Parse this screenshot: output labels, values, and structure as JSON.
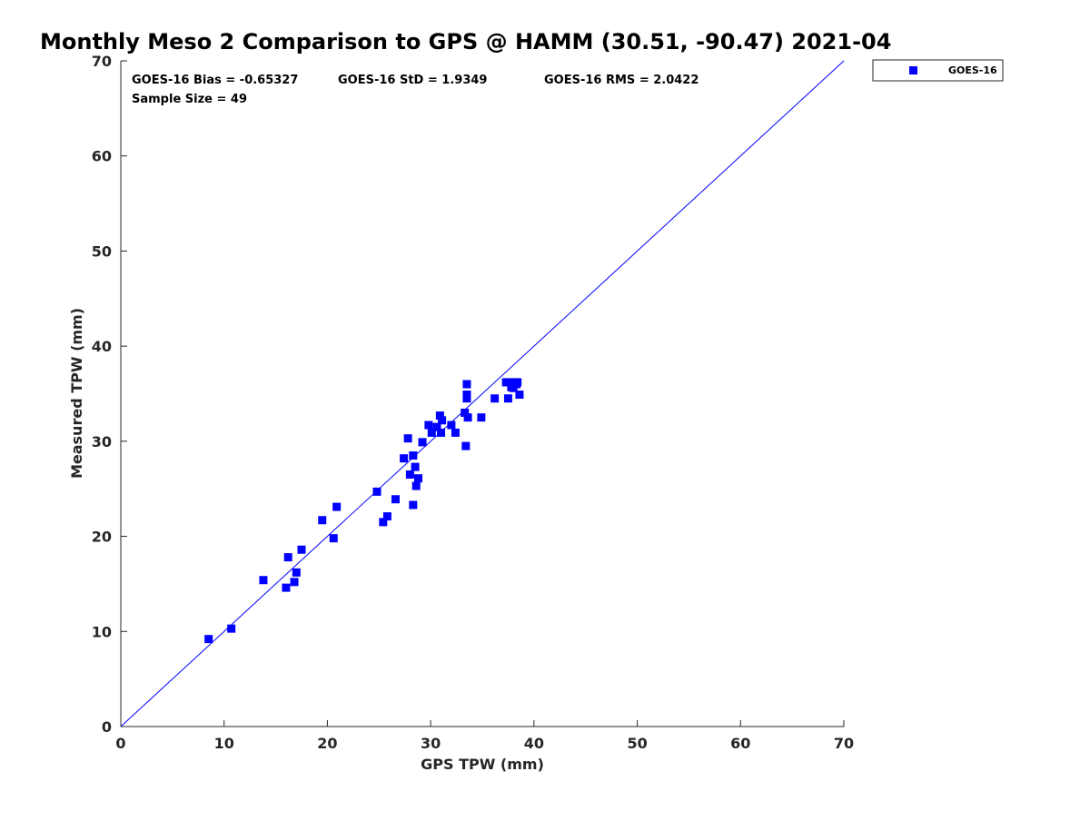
{
  "chart_data": {
    "type": "scatter",
    "title": "Monthly Meso 2 Comparison to GPS @ HAMM (30.51, -90.47) 2021-04",
    "xlabel": "GPS TPW (mm)",
    "ylabel": "Measured TPW (mm)",
    "xlim": [
      0,
      70
    ],
    "ylim": [
      0,
      70
    ],
    "xticks": [
      0,
      10,
      20,
      30,
      40,
      50,
      60,
      70
    ],
    "yticks": [
      0,
      10,
      20,
      30,
      40,
      50,
      60,
      70
    ],
    "xtick_labels": [
      "0",
      "10",
      "20",
      "30",
      "40",
      "50",
      "60",
      "70"
    ],
    "ytick_labels": [
      "0",
      "10",
      "20",
      "30",
      "40",
      "50",
      "60",
      "70"
    ],
    "grid": false,
    "legend_position": "outside-top-right",
    "reference_line": {
      "x": [
        0,
        70
      ],
      "y": [
        0,
        70
      ],
      "color": "#0000ff"
    },
    "stats": {
      "bias": "GOES-16 Bias = -0.65327",
      "std": "GOES-16 StD = 1.9349",
      "rms": "GOES-16 RMS = 2.0422",
      "sample_size": "Sample Size = 49"
    },
    "series": [
      {
        "name": "GOES-16",
        "color": "#0000ff",
        "marker": "square",
        "points": [
          [
            8.5,
            9.2
          ],
          [
            10.7,
            10.3
          ],
          [
            13.8,
            15.4
          ],
          [
            16.0,
            14.6
          ],
          [
            16.2,
            17.8
          ],
          [
            16.8,
            15.2
          ],
          [
            17.0,
            16.2
          ],
          [
            17.5,
            18.6
          ],
          [
            19.5,
            21.7
          ],
          [
            20.6,
            19.8
          ],
          [
            20.9,
            23.1
          ],
          [
            24.8,
            24.7
          ],
          [
            25.4,
            21.5
          ],
          [
            25.8,
            22.1
          ],
          [
            26.6,
            23.9
          ],
          [
            27.4,
            28.2
          ],
          [
            27.8,
            30.3
          ],
          [
            28.0,
            26.5
          ],
          [
            28.3,
            28.5
          ],
          [
            28.3,
            23.3
          ],
          [
            28.5,
            27.3
          ],
          [
            28.6,
            25.3
          ],
          [
            28.8,
            26.1
          ],
          [
            29.2,
            29.9
          ],
          [
            29.8,
            31.7
          ],
          [
            30.1,
            30.9
          ],
          [
            30.6,
            31.5
          ],
          [
            30.9,
            32.7
          ],
          [
            31.0,
            30.9
          ],
          [
            31.1,
            32.2
          ],
          [
            32.0,
            31.7
          ],
          [
            32.4,
            30.9
          ],
          [
            33.3,
            33.0
          ],
          [
            33.4,
            29.5
          ],
          [
            33.5,
            36.0
          ],
          [
            33.5,
            34.9
          ],
          [
            33.5,
            34.5
          ],
          [
            33.6,
            32.5
          ],
          [
            34.9,
            32.5
          ],
          [
            36.2,
            34.5
          ],
          [
            37.3,
            36.2
          ],
          [
            37.5,
            34.5
          ],
          [
            37.7,
            36.2
          ],
          [
            37.8,
            35.7
          ],
          [
            38.0,
            35.6
          ],
          [
            38.1,
            36.2
          ],
          [
            38.3,
            36.0
          ],
          [
            38.4,
            36.2
          ],
          [
            38.6,
            34.9
          ]
        ]
      }
    ]
  }
}
